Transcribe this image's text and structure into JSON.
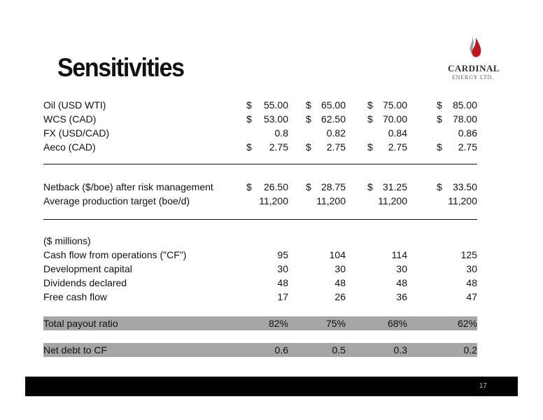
{
  "title": "Sensitivities",
  "logo": {
    "name": "CARDINAL",
    "sub": "ENERGY LTD."
  },
  "prices": [
    {
      "label": "Oil (USD WTI)",
      "values": [
        {
          "cur": "$",
          "num": "55.00"
        },
        {
          "cur": "$",
          "num": "65.00"
        },
        {
          "cur": "$",
          "num": "75.00"
        },
        {
          "cur": "$",
          "num": "85.00"
        }
      ]
    },
    {
      "label": "WCS (CAD)",
      "values": [
        {
          "cur": "$",
          "num": "53.00"
        },
        {
          "cur": "$",
          "num": "62.50"
        },
        {
          "cur": "$",
          "num": "70.00"
        },
        {
          "cur": "$",
          "num": "78.00"
        }
      ]
    },
    {
      "label": "FX (USD/CAD)",
      "values": [
        {
          "cur": "",
          "num": "0.8"
        },
        {
          "cur": "",
          "num": "0.82"
        },
        {
          "cur": "",
          "num": "0.84"
        },
        {
          "cur": "",
          "num": "0.86"
        }
      ]
    },
    {
      "label": "Aeco (CAD)",
      "values": [
        {
          "cur": "$",
          "num": "2.75"
        },
        {
          "cur": "$",
          "num": "2.75"
        },
        {
          "cur": "$",
          "num": "2.75"
        },
        {
          "cur": "$",
          "num": "2.75"
        }
      ]
    }
  ],
  "netback": [
    {
      "label": "Netback ($/boe) after risk management",
      "values": [
        {
          "cur": "$",
          "num": "26.50"
        },
        {
          "cur": "$",
          "num": "28.75"
        },
        {
          "cur": "$",
          "num": "31.25"
        },
        {
          "cur": "$",
          "num": "33.50"
        }
      ]
    },
    {
      "label": "Average production target (boe/d)",
      "values": [
        {
          "cur": "",
          "num": "11,200"
        },
        {
          "cur": "",
          "num": "11,200"
        },
        {
          "cur": "",
          "num": "11,200"
        },
        {
          "cur": "",
          "num": "11,200"
        }
      ]
    }
  ],
  "millions_label": "($ millions)",
  "cashflow": [
    {
      "label": "Cash flow from operations (\"CF\")",
      "values": [
        "95",
        "104",
        "114",
        "125"
      ]
    },
    {
      "label": "Development capital",
      "values": [
        "30",
        "30",
        "30",
        "30"
      ]
    },
    {
      "label": "Dividends declared",
      "values": [
        "48",
        "48",
        "48",
        "48"
      ]
    },
    {
      "label": "Free cash flow",
      "values": [
        "17",
        "26",
        "36",
        "47"
      ]
    }
  ],
  "payout": {
    "label": "Total payout ratio",
    "values": [
      "82%",
      "75%",
      "68%",
      "62%"
    ]
  },
  "netdebt": {
    "label": "Net debt to CF",
    "values": [
      "0.6",
      "0.5",
      "0.3",
      "0.2"
    ]
  },
  "page_number": "17"
}
